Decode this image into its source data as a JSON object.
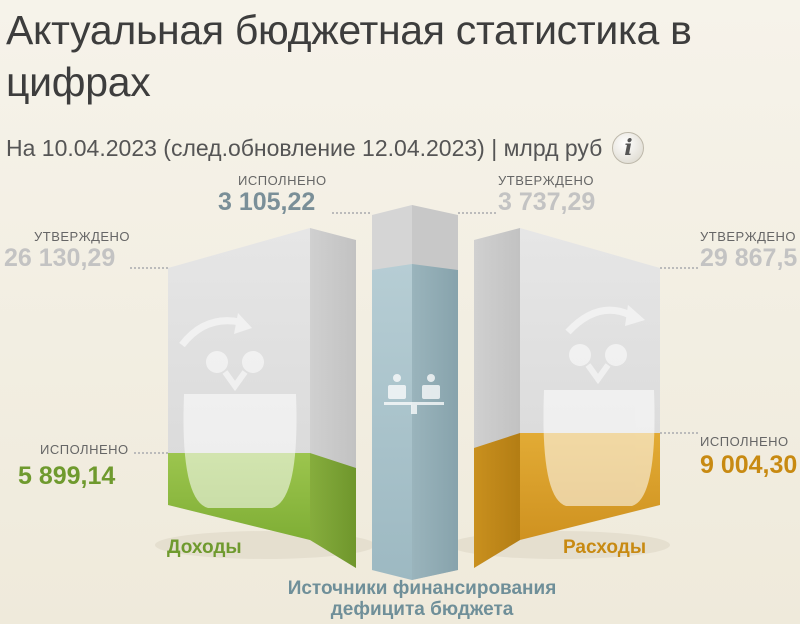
{
  "header": {
    "title": "Актуальная бюджетная статистика в цифрах",
    "subtitle": "На 10.04.2023 (след.обновление 12.04.2023) | млрд руб",
    "info_label": "i"
  },
  "income": {
    "name": "Доходы",
    "approved_label": "УТВЕРЖДЕНО",
    "approved_value": "26 130,29",
    "executed_label": "ИСПОЛНЕНО",
    "executed_value": "5 899,14",
    "color": "#8ab640"
  },
  "deficit": {
    "name_line1": "Источники финансирования",
    "name_line2": "дефицита бюджета",
    "executed_label": "ИСПОЛНЕНО",
    "executed_value": "3 105,22",
    "approved_label": "УТВЕРЖДЕНО",
    "approved_value": "3 737,29",
    "color": "#a8c3cb"
  },
  "expenses": {
    "name": "Расходы",
    "approved_label": "УТВЕРЖДЕНО",
    "approved_value": "29 867,5",
    "executed_label": "ИСПОЛНЕНО",
    "executed_value": "9 004,30",
    "color": "#d9a02a"
  }
}
